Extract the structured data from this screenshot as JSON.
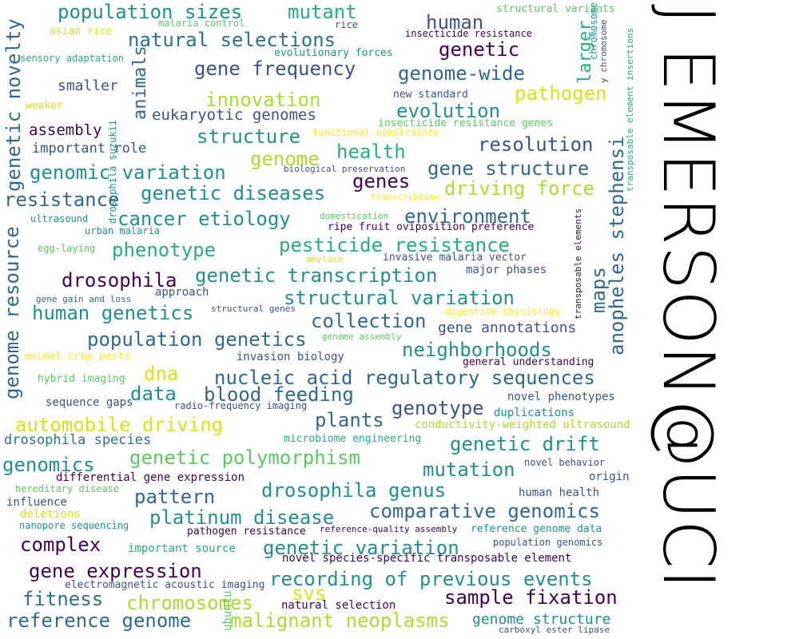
{
  "signature": "J EMERSON@UCI",
  "colors": {
    "dark_purple": "#440154",
    "indigo": "#3b528b",
    "blue": "#31688e",
    "teal_blue": "#2c728e",
    "teal": "#21908d",
    "green_teal": "#27ad81",
    "green": "#5dc863",
    "lime": "#aadc32",
    "yellow": "#d8e219",
    "bright_yellow": "#fde725"
  },
  "words": [
    {
      "text": "population sizes",
      "color": "#21908d"
    },
    {
      "text": "mutant",
      "color": "#27ad81"
    },
    {
      "text": "human",
      "color": "#3b528b"
    },
    {
      "text": "structural variants",
      "color": "#5dc863"
    },
    {
      "text": "asian rice",
      "color": "#d8e219"
    },
    {
      "text": "malaria control",
      "color": "#5dc863"
    },
    {
      "text": "rice",
      "color": "#3b528b"
    },
    {
      "text": "insecticide resistance",
      "color": "#440154"
    },
    {
      "text": "natural selections",
      "color": "#2c728e"
    },
    {
      "text": "genetic",
      "color": "#440154"
    },
    {
      "text": "sensory adaptation",
      "color": "#27ad81"
    },
    {
      "text": "evolutionary forces",
      "color": "#21908d"
    },
    {
      "text": "gene frequency",
      "color": "#3b528b"
    },
    {
      "text": "genome-wide",
      "color": "#31688e"
    },
    {
      "text": "smaller",
      "color": "#3b528b"
    },
    {
      "text": "new standard",
      "color": "#3b528b"
    },
    {
      "text": "pathogen",
      "color": "#d8e219"
    },
    {
      "text": "innovation",
      "color": "#aadc32"
    },
    {
      "text": "weaker",
      "color": "#d8e219"
    },
    {
      "text": "eukaryotic genomes",
      "color": "#3b528b"
    },
    {
      "text": "evolution",
      "color": "#21908d"
    },
    {
      "text": "insecticide resistance genes",
      "color": "#5dc863"
    },
    {
      "text": "assembly",
      "color": "#440154"
    },
    {
      "text": "structure",
      "color": "#21908d"
    },
    {
      "text": "functional constraints",
      "color": "#fde725"
    },
    {
      "text": "resolution",
      "color": "#3b528b"
    },
    {
      "text": "important role",
      "color": "#3b528b"
    },
    {
      "text": "health",
      "color": "#27ad81"
    },
    {
      "text": "genome",
      "color": "#aadc32"
    },
    {
      "text": "genomic variation",
      "color": "#21908d"
    },
    {
      "text": "biological preservation",
      "color": "#3b528b"
    },
    {
      "text": "gene structure",
      "color": "#31688e"
    },
    {
      "text": "genes",
      "color": "#440154"
    },
    {
      "text": "resistance",
      "color": "#31688e"
    },
    {
      "text": "genetic diseases",
      "color": "#21908d"
    },
    {
      "text": "driving force",
      "color": "#aadc32"
    },
    {
      "text": "transcriptome",
      "color": "#fde725"
    },
    {
      "text": "ultrasound",
      "color": "#21908d"
    },
    {
      "text": "cancer etiology",
      "color": "#21908d"
    },
    {
      "text": "environment",
      "color": "#31688e"
    },
    {
      "text": "domestication",
      "color": "#5dc863"
    },
    {
      "text": "urban malaria",
      "color": "#21908d"
    },
    {
      "text": "ripe fruit oviposition preference",
      "color": "#440154"
    },
    {
      "text": "egg-laying",
      "color": "#5dc863"
    },
    {
      "text": "phenotype",
      "color": "#27ad81"
    },
    {
      "text": "pesticide resistance",
      "color": "#27ad81"
    },
    {
      "text": "amylase",
      "color": "#d8e219"
    },
    {
      "text": "invasive malaria vector",
      "color": "#3b528b"
    },
    {
      "text": "drosophila",
      "color": "#440154"
    },
    {
      "text": "genetic transcription",
      "color": "#21908d"
    },
    {
      "text": "major phases",
      "color": "#3b528b"
    },
    {
      "text": "approach",
      "color": "#3b528b"
    },
    {
      "text": "gene gain and loss",
      "color": "#31688e"
    },
    {
      "text": "structural variation",
      "color": "#21908d"
    },
    {
      "text": "human genetics",
      "color": "#21908d"
    },
    {
      "text": "structural genes",
      "color": "#3b528b"
    },
    {
      "text": "digestive physiology",
      "color": "#fde725"
    },
    {
      "text": "collection",
      "color": "#31688e"
    },
    {
      "text": "gene annotations",
      "color": "#3b528b"
    },
    {
      "text": "population genetics",
      "color": "#31688e"
    },
    {
      "text": "genome assembly",
      "color": "#5dc863"
    },
    {
      "text": "animal crop pests",
      "color": "#fde725"
    },
    {
      "text": "invasion biology",
      "color": "#3b528b"
    },
    {
      "text": "neighborhoods",
      "color": "#21908d"
    },
    {
      "text": "general understanding",
      "color": "#440154"
    },
    {
      "text": "dna",
      "color": "#d8e219"
    },
    {
      "text": "nucleic acid regulatory sequences",
      "color": "#31688e"
    },
    {
      "text": "hybrid imaging",
      "color": "#5dc863"
    },
    {
      "text": "data",
      "color": "#21908d"
    },
    {
      "text": "blood feeding",
      "color": "#31688e"
    },
    {
      "text": "novel phenotypes",
      "color": "#3b528b"
    },
    {
      "text": "sequence gaps",
      "color": "#3b528b"
    },
    {
      "text": "radio-frequency imaging",
      "color": "#3b528b"
    },
    {
      "text": "genotype",
      "color": "#3b528b"
    },
    {
      "text": "duplications",
      "color": "#21908d"
    },
    {
      "text": "automobile driving",
      "color": "#d8e219"
    },
    {
      "text": "plants",
      "color": "#31688e"
    },
    {
      "text": "conductivity-weighted ultrasound",
      "color": "#aadc32"
    },
    {
      "text": "drosophila species",
      "color": "#2c728e"
    },
    {
      "text": "microbiome engineering",
      "color": "#27ad81"
    },
    {
      "text": "genetic drift",
      "color": "#21908d"
    },
    {
      "text": "genomics",
      "color": "#21908d"
    },
    {
      "text": "genetic polymorphism",
      "color": "#5dc863"
    },
    {
      "text": "mutation",
      "color": "#21908d"
    },
    {
      "text": "novel behavior",
      "color": "#3b528b"
    },
    {
      "text": "differential gene expression",
      "color": "#440154"
    },
    {
      "text": "origin",
      "color": "#3b528b"
    },
    {
      "text": "hereditary disease",
      "color": "#5dc863"
    },
    {
      "text": "drosophila genus",
      "color": "#21908d"
    },
    {
      "text": "pattern",
      "color": "#31688e"
    },
    {
      "text": "human health",
      "color": "#3b528b"
    },
    {
      "text": "influence",
      "color": "#3b528b"
    },
    {
      "text": "comparative genomics",
      "color": "#31688e"
    },
    {
      "text": "deletions",
      "color": "#d8e219"
    },
    {
      "text": "platinum disease",
      "color": "#21908d"
    },
    {
      "text": "nanopore sequencing",
      "color": "#21908d"
    },
    {
      "text": "pathogen resistance",
      "color": "#440154"
    },
    {
      "text": "reference-quality assembly",
      "color": "#440154"
    },
    {
      "text": "reference genome data",
      "color": "#21908d"
    },
    {
      "text": "complex",
      "color": "#440154"
    },
    {
      "text": "important source",
      "color": "#27ad81"
    },
    {
      "text": "genetic variation",
      "color": "#21908d"
    },
    {
      "text": "population genomics",
      "color": "#3b528b"
    },
    {
      "text": "novel species-specific transposable element",
      "color": "#440154"
    },
    {
      "text": "gene expression",
      "color": "#440154"
    },
    {
      "text": "recording of previous events",
      "color": "#21908d"
    },
    {
      "text": "electromagnetic acoustic imaging",
      "color": "#3b528b"
    },
    {
      "text": "svs",
      "color": "#d8e219"
    },
    {
      "text": "fitness",
      "color": "#2c728e"
    },
    {
      "text": "chromosomes",
      "color": "#aadc32"
    },
    {
      "text": "natural selection",
      "color": "#440154"
    },
    {
      "text": "sample fixation",
      "color": "#440154"
    },
    {
      "text": "reference genome",
      "color": "#31688e"
    },
    {
      "text": "malignant neoplasms",
      "color": "#aadc32"
    },
    {
      "text": "genome structure",
      "color": "#21908d"
    },
    {
      "text": "carboxyl ester lipase",
      "color": "#3b528b"
    },
    {
      "text": "genetic novelty",
      "color": "#31688e"
    },
    {
      "text": "genome resource",
      "color": "#31688e"
    },
    {
      "text": "animals",
      "color": "#31688e"
    },
    {
      "text": "drosophila suzukii",
      "color": "#21908d"
    },
    {
      "text": "larger",
      "color": "#27ad81"
    },
    {
      "text": "chromosome",
      "color": "#21908d"
    },
    {
      "text": "y chromosome",
      "color": "#3b528b"
    },
    {
      "text": "transposable element insertions",
      "color": "#27ad81"
    },
    {
      "text": "anopheles stephensi",
      "color": "#31688e"
    },
    {
      "text": "maps",
      "color": "#31688e"
    },
    {
      "text": "transposable elements",
      "color": "#440154"
    },
    {
      "text": "ubuntu",
      "color": "#5dc863"
    }
  ]
}
